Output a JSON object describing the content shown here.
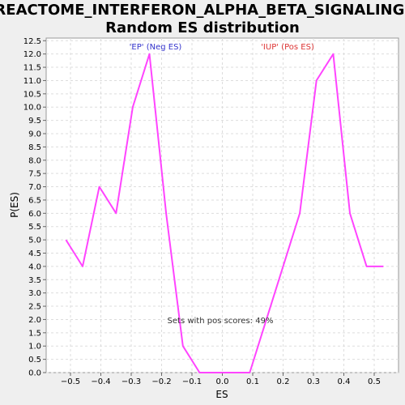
{
  "chart_data": {
    "type": "line",
    "title_lines": [
      "REACTOME_INTERFERON_ALPHA_BETA_SIGNALING:",
      "Random ES distribution"
    ],
    "xlabel": "ES",
    "ylabel": "P(ES)",
    "xlim": [
      -0.58,
      0.58
    ],
    "ylim": [
      0,
      12.6
    ],
    "x_ticks": [
      -0.5,
      -0.4,
      -0.3,
      -0.2,
      -0.1,
      0.0,
      0.1,
      0.2,
      0.3,
      0.4,
      0.5
    ],
    "x_tick_labels": [
      "−0.5",
      "−0.4",
      "−0.3",
      "−0.2",
      "−0.1",
      "0.0",
      "0.1",
      "0.2",
      "0.3",
      "0.4",
      "0.5"
    ],
    "y_ticks": [
      0.0,
      0.5,
      1.0,
      1.5,
      2.0,
      2.5,
      3.0,
      3.5,
      4.0,
      4.5,
      5.0,
      5.5,
      6.0,
      6.5,
      7.0,
      7.5,
      8.0,
      8.5,
      9.0,
      9.5,
      10.0,
      10.5,
      11.0,
      11.5,
      12.0,
      12.5
    ],
    "y_tick_labels": [
      "0.0",
      "0.5",
      "1.0",
      "1.5",
      "2.0",
      "2.5",
      "3.0",
      "3.5",
      "4.0",
      "4.5",
      "5.0",
      "5.5",
      "6.0",
      "6.5",
      "7.0",
      "7.5",
      "8.0",
      "8.5",
      "9.0",
      "9.5",
      "10.0",
      "10.5",
      "11.0",
      "11.5",
      "12.0",
      "12.5"
    ],
    "grid": true,
    "series": [
      {
        "color": "#ff44ff",
        "x": [
          -0.515,
          -0.46,
          -0.405,
          -0.35,
          -0.295,
          -0.24,
          -0.185,
          -0.13,
          -0.075,
          -0.02,
          0.035,
          0.09,
          0.145,
          0.2,
          0.255,
          0.31,
          0.365,
          0.42,
          0.475,
          0.53
        ],
        "y": [
          5,
          4,
          7,
          6,
          10,
          12,
          6,
          1,
          0,
          0,
          0,
          0,
          2,
          4,
          6,
          11,
          12,
          6,
          4,
          4
        ]
      }
    ],
    "annotations": [
      {
        "text": "'EP' (Neg ES)",
        "color": "#3333cc"
      },
      {
        "text": "'IUP' (Pos ES)",
        "color": "#dd3333"
      },
      {
        "text": "Sets with pos scores: 49%",
        "color": "#333333"
      }
    ]
  }
}
